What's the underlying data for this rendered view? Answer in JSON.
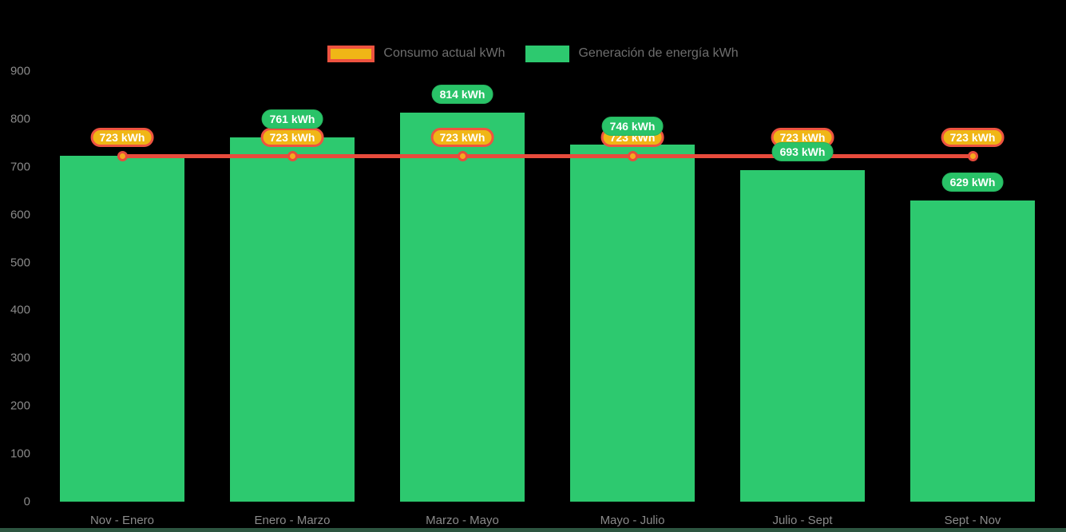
{
  "chart_data": {
    "type": "bar",
    "title": "",
    "categories": [
      "Nov - Enero",
      "Enero - Marzo",
      "Marzo - Mayo",
      "Mayo - Julio",
      "Julio - Sept",
      "Sept - Nov"
    ],
    "series": [
      {
        "name": "Consumo actual kWh",
        "type": "line",
        "values": [
          723,
          723,
          723,
          723,
          723,
          723
        ],
        "labels": [
          "723 kWh",
          "723 kWh",
          "723 kWh",
          "723 kWh",
          "723 kWh",
          "723 kWh"
        ],
        "color": "#e84b3c",
        "point_color": "#f6a91f",
        "label_bg": "#f0b616",
        "label_border": "#ee5340"
      },
      {
        "name": "Generación de energía kWh",
        "type": "bar",
        "values": [
          723,
          761,
          814,
          746,
          693,
          629
        ],
        "labels": [
          "723 kWh",
          "761 kWh",
          "814 kWh",
          "746 kWh",
          "693 kWh",
          "629 kWh"
        ],
        "color": "#2dc96f",
        "label_bg": "#29c368",
        "label_border": "#25b45e"
      }
    ],
    "value_label_suffix": " kWh",
    "y_ticks": [
      "0",
      "100",
      "200",
      "300",
      "400",
      "500",
      "600",
      "700",
      "800",
      "900"
    ],
    "ylim": [
      0,
      900
    ],
    "grid": false,
    "legend_position": "top",
    "axis_text_color": "#8a8a8a",
    "legend_text_color": "#6e6e6e",
    "background_color": "#000000",
    "bottom_strip_color": "#2d5540"
  }
}
